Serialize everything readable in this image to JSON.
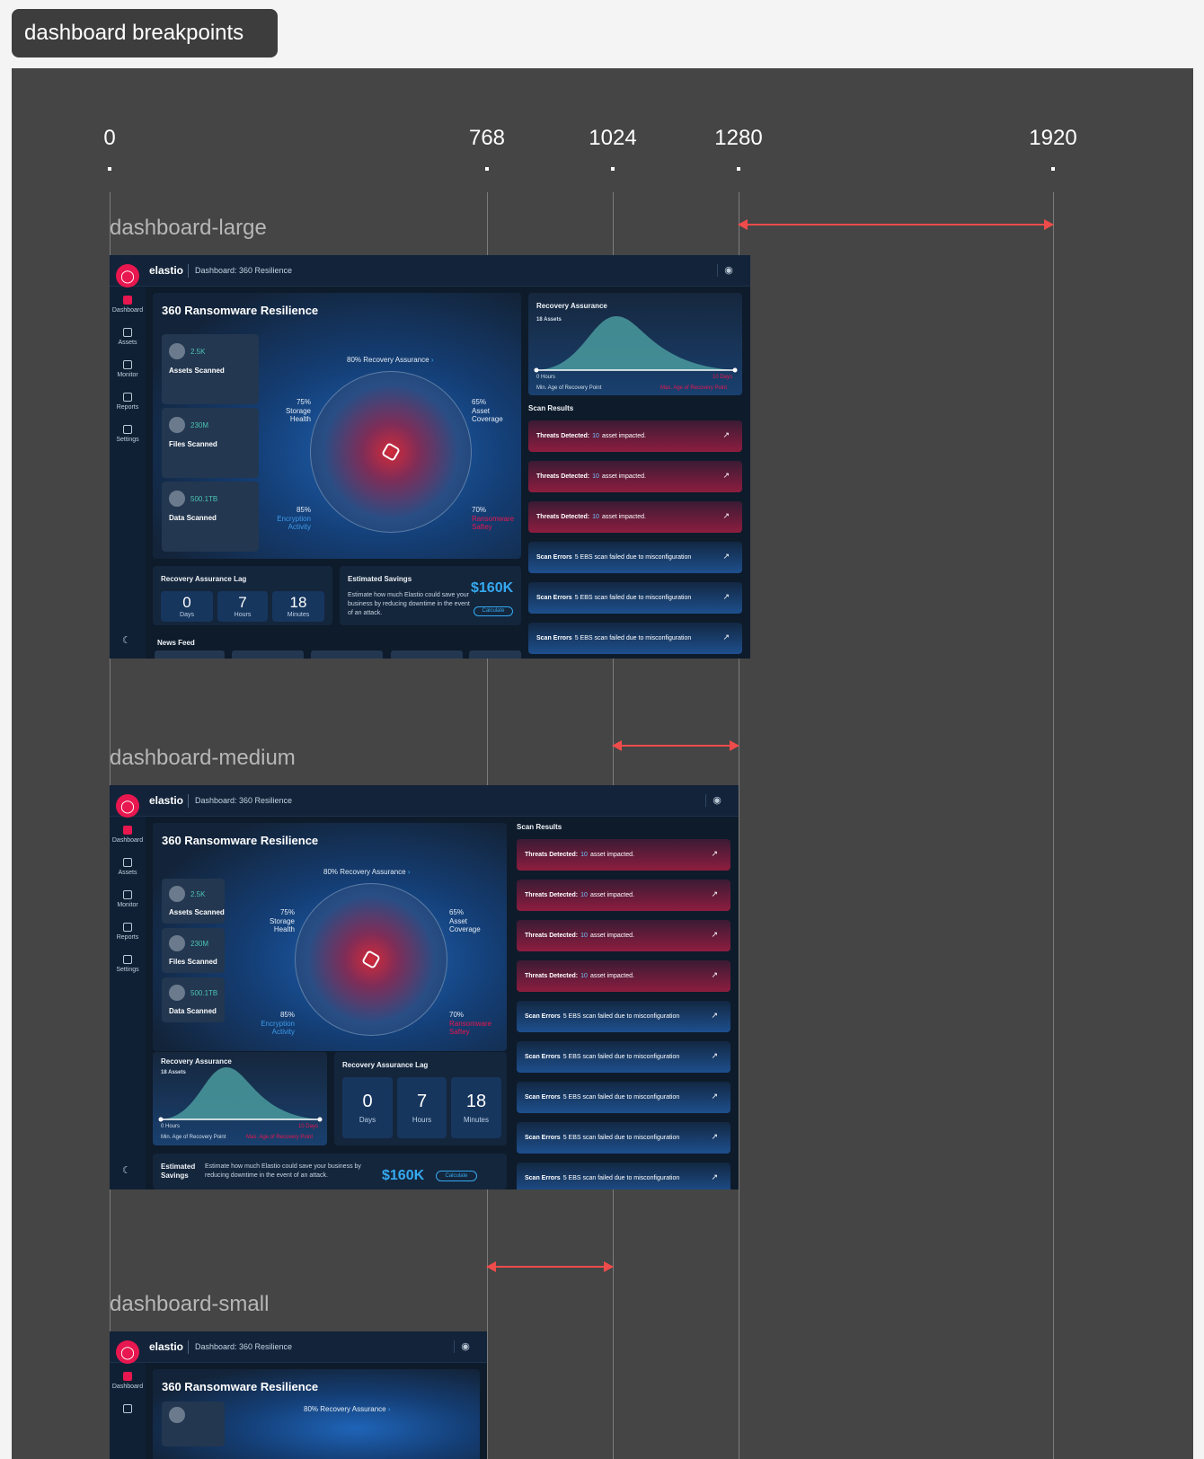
{
  "page_title": "dashboard breakpoints",
  "breakpoints": [
    "0",
    "768",
    "1024",
    "1280",
    "1920"
  ],
  "variants": {
    "large": "dashboard-large",
    "medium": "dashboard-medium",
    "small": "dashboard-small"
  },
  "app": {
    "brand": "elastio",
    "breadcrumb": "Dashboard: 360 Resilience",
    "nav": [
      "Dashboard",
      "Assets",
      "Monitor",
      "Reports",
      "Settings"
    ]
  },
  "hero": {
    "title": "360 Ransomware Resilience",
    "recovery_assurance": "80% Recovery Assurance",
    "stats": [
      {
        "value": "2.5K",
        "label": "Assets Scanned"
      },
      {
        "value": "230M",
        "label": "Files Scanned"
      },
      {
        "value": "500.1TB",
        "label": "Data Scanned"
      }
    ],
    "radar_labels": {
      "storage": [
        "75%",
        "Storage",
        "Health"
      ],
      "asset": [
        "65%",
        "Asset",
        "Coverage"
      ],
      "encryption": [
        "85%",
        "Encryption",
        "Activity"
      ],
      "ransomware": [
        "70%",
        "Ransomware",
        "Saftey"
      ]
    }
  },
  "recovery_assurance_chart": {
    "title": "Recovery Assurance",
    "assets": "18 Assets",
    "x_min": "0 Hours",
    "x_max": "10 Days",
    "x_min_label": "Min. Age of Recovery Point",
    "x_max_label": "Max. Age of Recovery Point"
  },
  "lag": {
    "title": "Recovery Assurance Lag",
    "items": [
      {
        "num": "0",
        "unit": "Days"
      },
      {
        "num": "7",
        "unit": "Hours"
      },
      {
        "num": "18",
        "unit": "Minutes"
      }
    ]
  },
  "savings": {
    "title": "Estimated Savings",
    "title_line1": "Estimated",
    "title_line2": "Savings",
    "text": "Estimate how much Elastio could save your business by reducing downtime in the event of an attack.",
    "value": "$160K",
    "button": "Calculate"
  },
  "news": {
    "title": "News Feed"
  },
  "scan_results": {
    "title": "Scan Results",
    "threat_label": "Threats Detected:",
    "threat_count": "10",
    "threat_text": "asset impacted.",
    "error_label": "Scan Errors",
    "error_text": "5 EBS scan failed due to misconfiguration"
  },
  "colors": {
    "accent": "#e8174f",
    "frame": "#454545",
    "arrow": "#ee4b4b",
    "dashboard_bg": "#0e1b2b"
  }
}
